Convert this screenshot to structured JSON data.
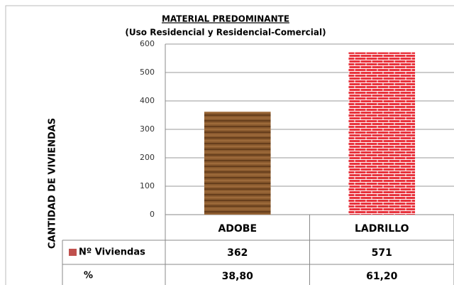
{
  "chart_data": {
    "type": "bar",
    "title": "MATERIAL PREDOMINANTE",
    "subtitle": "(Uso Residencial y Residencial-Comercial)",
    "y_label": "CANTIDAD DE VIVIENDAS",
    "categories": [
      "ADOBE",
      "LADRILLO"
    ],
    "series": [
      {
        "name": "Nº Viviendas",
        "color": "#c0504d",
        "colors": [
          "#8a5a2e",
          "#e8323c"
        ],
        "values": [
          362,
          571
        ]
      }
    ],
    "percent_row": {
      "name": "%",
      "values": [
        38.8,
        61.2
      ],
      "value_labels": [
        "38,80",
        "61,20"
      ]
    },
    "ylim": [
      0,
      600
    ],
    "yticks": [
      0,
      100,
      200,
      300,
      400,
      500,
      600
    ],
    "grid": true
  }
}
